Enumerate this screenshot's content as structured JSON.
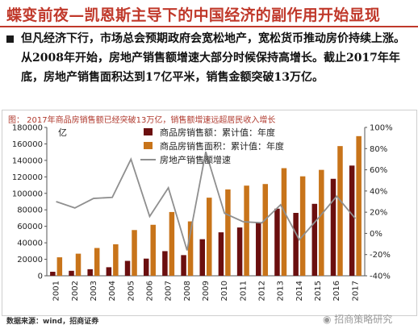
{
  "page": {
    "title": "蝶变前夜—凯恩斯主导下的中国经济的副作用开始显现",
    "summary": "但凡经济下行，市场总会预期政府会宽松地产，宽松货币推动房价持续上涨。从2008年开始，房地产销售额增速大部分时候保持高增长。截止2017年年底，房地产销售面积达到17亿平米，销售金额突破13万亿。",
    "figure_caption": "图：  2017年商品房销售额已经突破13万亿，销售额增速远超居民收入增长",
    "source_note": "数据来源：wind，招商证券",
    "watermark": "招商策略研究"
  },
  "chart_data": {
    "type": "bar",
    "categories": [
      "2001",
      "2002",
      "2003",
      "2004",
      "2005",
      "2006",
      "2007",
      "2008",
      "2009",
      "2010",
      "2011",
      "2012",
      "2013",
      "2014",
      "2015",
      "2016",
      "2017"
    ],
    "y_unit_label": "亿",
    "ylim": [
      0,
      180000
    ],
    "yticks": [
      0,
      20000,
      40000,
      60000,
      80000,
      100000,
      120000,
      140000,
      160000,
      180000
    ],
    "ytick_labels": [
      "0",
      "20000",
      "40000",
      "60000",
      "80000",
      "100000",
      "120000",
      "140000",
      "160000",
      "180000"
    ],
    "y2lim": [
      -40,
      100
    ],
    "y2ticks": [
      -40,
      -20,
      0,
      20,
      40,
      60,
      80,
      100
    ],
    "y2tick_labels": [
      "-40%",
      "-20%",
      "0%",
      "20%",
      "40%",
      "60%",
      "80%",
      "100%"
    ],
    "series": [
      {
        "name": "商品房销售额：累计值：年度",
        "kind": "bar",
        "axis": "left",
        "color": "#6b0f0f",
        "values": [
          4863,
          6032,
          7956,
          10376,
          18080,
          20826,
          29889,
          25068,
          44355,
          52721,
          58589,
          64456,
          81428,
          76292,
          87281,
          117627,
          133701
        ]
      },
      {
        "name": "商品房销售面积：累计值：年度",
        "kind": "bar",
        "axis": "left",
        "color": "#c8741a",
        "values": [
          22412,
          26808,
          33718,
          38232,
          55486,
          61857,
          77355,
          65970,
          94755,
          104765,
          109367,
          111304,
          130551,
          120649,
          128495,
          157349,
          169408
        ]
      },
      {
        "name": "房地产销售额增速",
        "kind": "line",
        "axis": "right",
        "color": "#8f8f8f",
        "values": [
          30,
          24,
          33,
          34,
          70,
          16,
          43,
          -16,
          77,
          19,
          11,
          10,
          27,
          -6,
          14,
          35,
          14
        ]
      }
    ],
    "legend_position": "top-center",
    "grid": false
  }
}
